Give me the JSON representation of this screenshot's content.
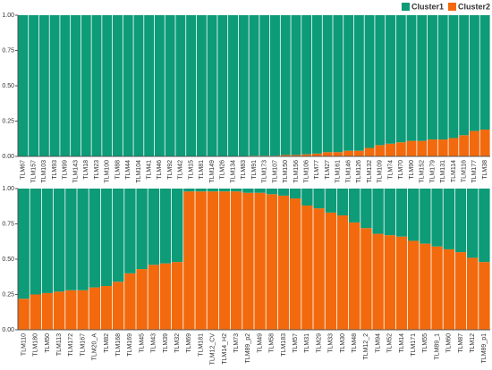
{
  "chart_data": [
    {
      "type": "stacked_bar",
      "categories": [
        "TLM67",
        "TLM157",
        "TLM103",
        "TLM93",
        "TLM99",
        "TLM143",
        "TLM18",
        "TLM23",
        "TLM100",
        "TLM88",
        "TLM44",
        "TLM104",
        "TLM41",
        "TLM46",
        "TLM92",
        "TLM42",
        "TLM15",
        "TLM81",
        "TLM149",
        "TLM26",
        "TLM134",
        "TLM83",
        "TLM91",
        "TLM173",
        "TLM107",
        "TLM150",
        "TLM156",
        "TLM106",
        "TLM77",
        "TLM27",
        "TLM161",
        "TLM146",
        "TLM126",
        "TLM132",
        "TLM109",
        "TLM74",
        "TLM70",
        "TLM90",
        "TLM152",
        "TLM179",
        "TLM131",
        "TLM114",
        "TLM116",
        "TLM177",
        "TLM38"
      ],
      "series": [
        {
          "name": "Cluster2",
          "color": "#f26a0d",
          "values": [
            0,
            0,
            0,
            0,
            0,
            0,
            0,
            0,
            0,
            0,
            0,
            0,
            0,
            0,
            0,
            0,
            0,
            0,
            0,
            0,
            0,
            0,
            0.005,
            0.005,
            0.005,
            0.01,
            0.01,
            0.015,
            0.02,
            0.03,
            0.03,
            0.04,
            0.04,
            0.06,
            0.08,
            0.09,
            0.1,
            0.11,
            0.11,
            0.12,
            0.12,
            0.13,
            0.15,
            0.18,
            0.19
          ]
        },
        {
          "name": "Cluster1",
          "color": "#0d9b78",
          "values": [
            1,
            1,
            1,
            1,
            1,
            1,
            1,
            1,
            1,
            1,
            1,
            1,
            1,
            1,
            1,
            1,
            1,
            1,
            1,
            1,
            1,
            1,
            0.995,
            0.995,
            0.995,
            0.99,
            0.99,
            0.985,
            0.98,
            0.97,
            0.97,
            0.96,
            0.96,
            0.94,
            0.92,
            0.91,
            0.9,
            0.89,
            0.89,
            0.88,
            0.88,
            0.87,
            0.85,
            0.82,
            0.81
          ]
        }
      ],
      "ylim": [
        0,
        1
      ],
      "yticks": [
        {
          "value": 0,
          "label": "0.00"
        },
        {
          "value": 0.25,
          "label": "0.25"
        },
        {
          "value": 0.5,
          "label": "0.50"
        },
        {
          "value": 0.75,
          "label": "0.75"
        },
        {
          "value": 1,
          "label": "1.00"
        }
      ],
      "legend": "top-right"
    },
    {
      "type": "stacked_bar",
      "categories": [
        "TLM110",
        "TLM180",
        "TLM50",
        "TLM113",
        "TLM172",
        "TLM167",
        "TLM20_A",
        "TLM82",
        "TLM168",
        "TLM169",
        "TLM45",
        "TLM43",
        "TLM39",
        "TLM32",
        "TLM69",
        "TLM181",
        "TLM12_CV",
        "TLM14_H2",
        "TLM73",
        "TLM89_p2",
        "TLM49",
        "TLM58",
        "TLM183",
        "TLM57",
        "TLM31",
        "TLM29",
        "TLM33",
        "TLM30",
        "TLM48",
        "TLM12_2",
        "TLM94",
        "TLM52",
        "TLM14",
        "TLM171",
        "TLM55",
        "TLM89_1",
        "TLM60",
        "TLM87",
        "TLM12",
        "TLM89_p1"
      ],
      "series": [
        {
          "name": "Cluster2",
          "color": "#f26a0d",
          "values": [
            0.22,
            0.25,
            0.26,
            0.27,
            0.28,
            0.28,
            0.3,
            0.31,
            0.34,
            0.4,
            0.43,
            0.46,
            0.47,
            0.48,
            0.98,
            0.98,
            0.98,
            0.98,
            0.98,
            0.97,
            0.97,
            0.96,
            0.95,
            0.93,
            0.88,
            0.86,
            0.83,
            0.81,
            0.76,
            0.72,
            0.68,
            0.67,
            0.66,
            0.63,
            0.61,
            0.59,
            0.57,
            0.55,
            0.51,
            0.48
          ]
        },
        {
          "name": "Cluster1",
          "color": "#0d9b78",
          "values": [
            0.78,
            0.75,
            0.74,
            0.73,
            0.72,
            0.72,
            0.7,
            0.69,
            0.66,
            0.6,
            0.57,
            0.54,
            0.53,
            0.52,
            0.02,
            0.02,
            0.02,
            0.02,
            0.02,
            0.03,
            0.03,
            0.04,
            0.05,
            0.07,
            0.12,
            0.14,
            0.17,
            0.19,
            0.24,
            0.28,
            0.32,
            0.33,
            0.34,
            0.37,
            0.39,
            0.41,
            0.43,
            0.45,
            0.49,
            0.52
          ]
        }
      ],
      "ylim": [
        0,
        1
      ],
      "yticks": [
        {
          "value": 0,
          "label": "0.00"
        },
        {
          "value": 0.25,
          "label": "0.25"
        },
        {
          "value": 0.5,
          "label": "0.50"
        },
        {
          "value": 0.75,
          "label": "0.75"
        },
        {
          "value": 1,
          "label": "1.00"
        }
      ]
    }
  ]
}
